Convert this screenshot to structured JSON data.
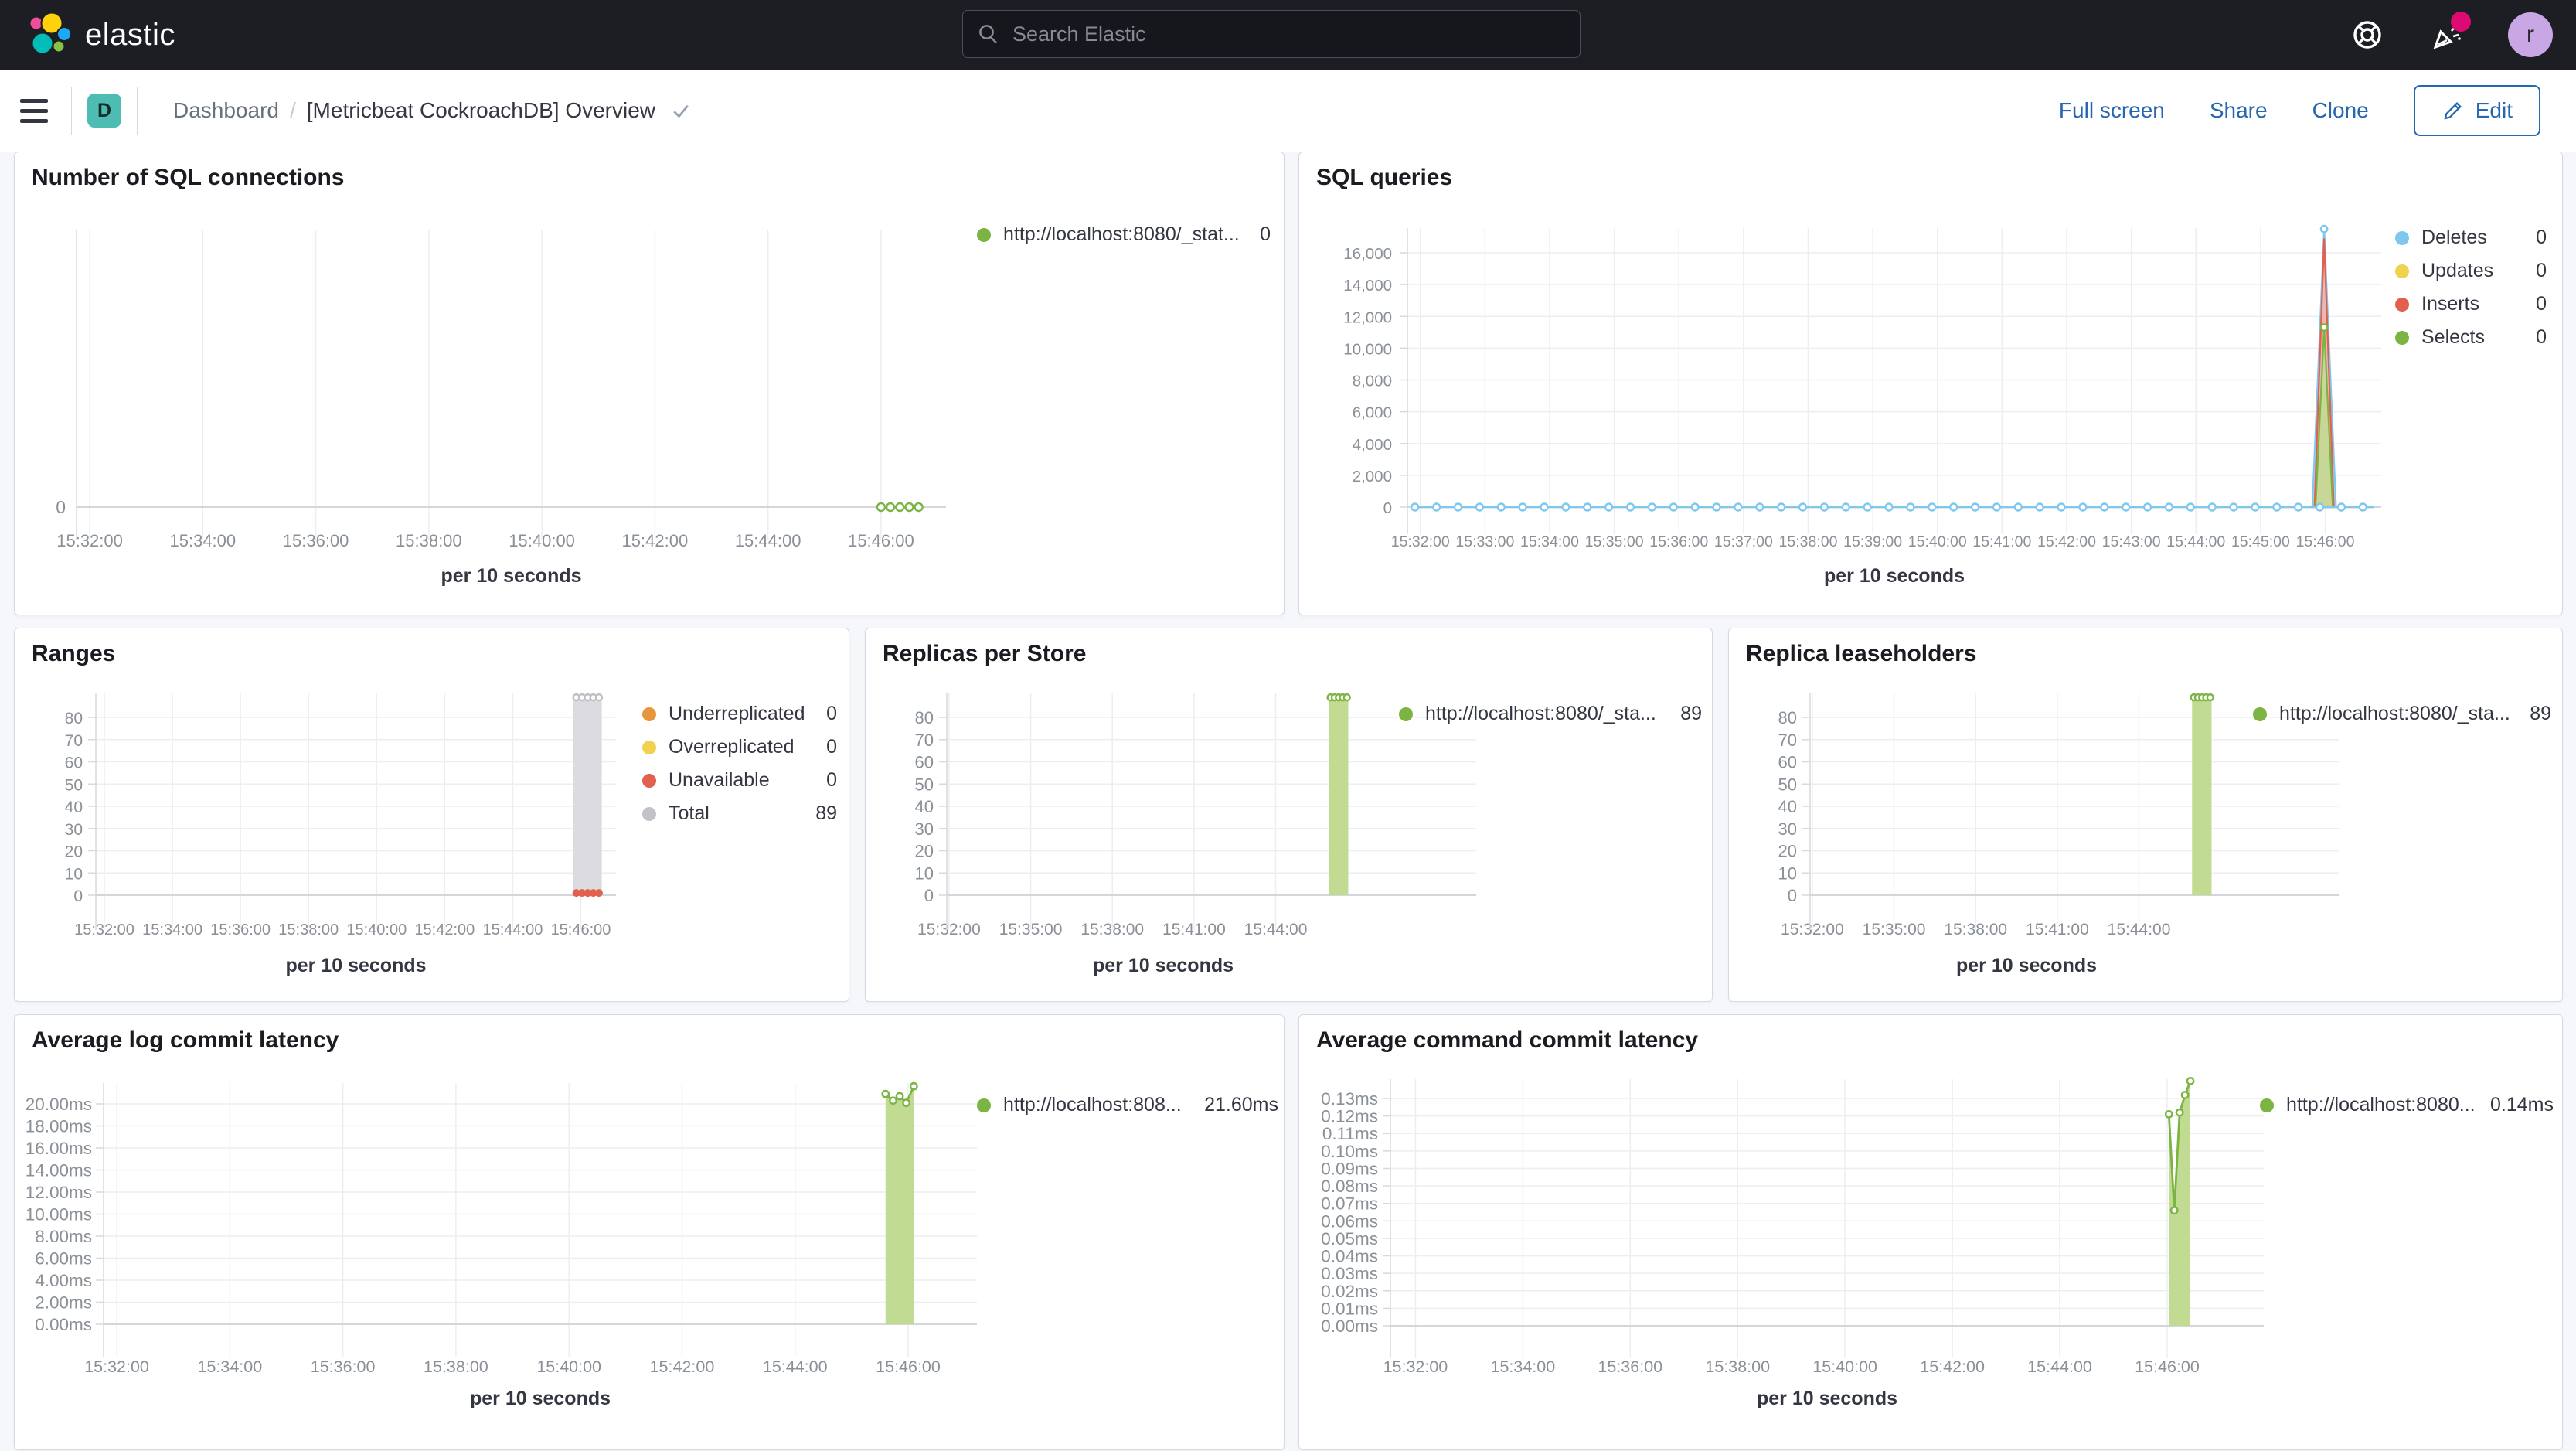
{
  "header": {
    "brand": "elastic",
    "search_placeholder": "Search Elastic",
    "avatar_initial": "r",
    "icons": [
      "help-icon",
      "newsfeed-icon",
      "avatar"
    ]
  },
  "toolbar": {
    "badge": "D",
    "breadcrumb_root": "Dashboard",
    "breadcrumb_separator": "/",
    "title": "[Metricbeat CockroachDB] Overview",
    "full_screen": "Full screen",
    "share": "Share",
    "clone": "Clone",
    "edit": "Edit"
  },
  "colors": {
    "green": "#7cb443",
    "green_fill": "#c1dc92",
    "blue": "#7ec8f0",
    "blue_fill": "#b5def5",
    "red": "#e2604e",
    "red_fill": "#f0b0a6",
    "yellow": "#f0d24e",
    "yellow_fill": "#f7e9a8",
    "gray": "#c2c2c8",
    "gray_fill": "#dcdce0",
    "orange": "#e9953c",
    "link_blue": "#2767b0",
    "badge_teal": "#4dbcb2",
    "notification_pink": "#dd0a73"
  },
  "chart_data": [
    {
      "title": "Number of SQL connections",
      "type": "line",
      "xlabel": "per 10 seconds",
      "ylim": [
        0,
        0
      ],
      "x_ticks": [
        {
          "t": 60,
          "label": "15:32:00"
        },
        {
          "t": 180,
          "label": "15:34:00"
        },
        {
          "t": 300,
          "label": "15:36:00"
        },
        {
          "t": 420,
          "label": "15:38:00"
        },
        {
          "t": 540,
          "label": "15:40:00"
        },
        {
          "t": 660,
          "label": "15:42:00"
        },
        {
          "t": 780,
          "label": "15:44:00"
        },
        {
          "t": 900,
          "label": "15:46:00"
        }
      ],
      "y_ticks": [
        {
          "v": 0,
          "label": "0"
        }
      ],
      "series": [
        {
          "name": "http://localhost:8080/_stat...",
          "color": "green",
          "style": "line",
          "points": [
            [
              900,
              0
            ],
            [
              910,
              0
            ],
            [
              920,
              0
            ],
            [
              930,
              0
            ],
            [
              940,
              0
            ]
          ]
        }
      ],
      "legend": [
        {
          "color": "green",
          "label": "http://localhost:8080/_stat...",
          "value": "0"
        }
      ]
    },
    {
      "title": "SQL queries",
      "type": "area",
      "xlabel": "per 10 seconds",
      "ylim": [
        0,
        16000
      ],
      "x_ticks": [
        {
          "t": 60,
          "label": "15:32:00"
        },
        {
          "t": 120,
          "label": "15:33:00"
        },
        {
          "t": 180,
          "label": "15:34:00"
        },
        {
          "t": 240,
          "label": "15:35:00"
        },
        {
          "t": 300,
          "label": "15:36:00"
        },
        {
          "t": 360,
          "label": "15:37:00"
        },
        {
          "t": 420,
          "label": "15:38:00"
        },
        {
          "t": 480,
          "label": "15:39:00"
        },
        {
          "t": 540,
          "label": "15:40:00"
        },
        {
          "t": 600,
          "label": "15:41:00"
        },
        {
          "t": 660,
          "label": "15:42:00"
        },
        {
          "t": 720,
          "label": "15:43:00"
        },
        {
          "t": 780,
          "label": "15:44:00"
        },
        {
          "t": 840,
          "label": "15:45:00"
        },
        {
          "t": 900,
          "label": "15:46:00"
        }
      ],
      "y_ticks": [
        {
          "v": 0,
          "label": "0"
        },
        {
          "v": 2000,
          "label": "2,000"
        },
        {
          "v": 4000,
          "label": "4,000"
        },
        {
          "v": 6000,
          "label": "6,000"
        },
        {
          "v": 8000,
          "label": "8,000"
        },
        {
          "v": 10000,
          "label": "10,000"
        },
        {
          "v": 12000,
          "label": "12,000"
        },
        {
          "v": 14000,
          "label": "14,000"
        },
        {
          "v": 16000,
          "label": "16,000"
        }
      ],
      "series": [
        {
          "name": "Updates",
          "color": "yellow",
          "style": "flatline",
          "points": [
            [
              55,
              0
            ],
            [
              945,
              0
            ]
          ],
          "step": 0
        },
        {
          "name": "Deletes",
          "color": "blue",
          "style": "spike",
          "points": [
            [
              888,
              0
            ],
            [
              899,
              17500
            ],
            [
              910,
              0
            ]
          ],
          "apex": true
        },
        {
          "name": "Inserts",
          "color": "red",
          "style": "spike",
          "points": [
            [
              890,
              0
            ],
            [
              899,
              16900
            ],
            [
              908,
              0
            ]
          ],
          "apex": false
        },
        {
          "name": "Selects",
          "color": "green",
          "style": "spike",
          "points": [
            [
              891,
              0
            ],
            [
              899,
              11300
            ],
            [
              907,
              0
            ]
          ],
          "apex": true
        },
        {
          "name": "Deletes",
          "color": "blue",
          "style": "flatline",
          "points": [
            [
              55,
              0
            ],
            [
              945,
              0
            ]
          ],
          "step": 20
        }
      ],
      "legend": [
        {
          "color": "blue",
          "label": "Deletes",
          "value": "0"
        },
        {
          "color": "yellow",
          "label": "Updates",
          "value": "0"
        },
        {
          "color": "red",
          "label": "Inserts",
          "value": "0"
        },
        {
          "color": "green",
          "label": "Selects",
          "value": "0"
        }
      ]
    },
    {
      "title": "Ranges",
      "type": "bar",
      "xlabel": "per 10 seconds",
      "ylim": [
        0,
        80
      ],
      "x_ticks": [
        {
          "t": 60,
          "label": "15:32:00"
        },
        {
          "t": 180,
          "label": "15:34:00"
        },
        {
          "t": 300,
          "label": "15:36:00"
        },
        {
          "t": 420,
          "label": "15:38:00"
        },
        {
          "t": 540,
          "label": "15:40:00"
        },
        {
          "t": 660,
          "label": "15:42:00"
        },
        {
          "t": 780,
          "label": "15:44:00"
        },
        {
          "t": 900,
          "label": "15:46:00"
        }
      ],
      "y_ticks": [
        {
          "v": 0,
          "label": "0"
        },
        {
          "v": 10,
          "label": "10"
        },
        {
          "v": 20,
          "label": "20"
        },
        {
          "v": 30,
          "label": "30"
        },
        {
          "v": 40,
          "label": "40"
        },
        {
          "v": 50,
          "label": "50"
        },
        {
          "v": 60,
          "label": "60"
        },
        {
          "v": 70,
          "label": "70"
        },
        {
          "v": 80,
          "label": "80"
        }
      ],
      "series": [
        {
          "name": "Total",
          "color": "gray",
          "style": "bar",
          "points": [
            [
              887,
              89
            ],
            [
              937,
              89
            ]
          ],
          "top_markers": {
            "from": 892,
            "to": 932,
            "step": 10,
            "v": 89
          }
        },
        {
          "name": "Unavailable",
          "color": "red",
          "style": "dots",
          "points": [
            [
              892,
              1
            ],
            [
              902,
              1
            ],
            [
              912,
              1
            ],
            [
              922,
              1
            ],
            [
              932,
              1
            ]
          ]
        }
      ],
      "legend": [
        {
          "color": "orange",
          "label": "Underreplicated",
          "value": "0"
        },
        {
          "color": "yellow",
          "label": "Overreplicated",
          "value": "0"
        },
        {
          "color": "red",
          "label": "Unavailable",
          "value": "0"
        },
        {
          "color": "gray",
          "label": "Total",
          "value": "89"
        }
      ]
    },
    {
      "title": "Replicas per Store",
      "type": "bar",
      "xlabel": "per 10 seconds",
      "ylim": [
        0,
        80
      ],
      "x_ticks": [
        {
          "t": 60,
          "label": "15:32:00"
        },
        {
          "t": 240,
          "label": "15:35:00"
        },
        {
          "t": 420,
          "label": "15:38:00"
        },
        {
          "t": 600,
          "label": "15:41:00"
        },
        {
          "t": 780,
          "label": "15:44:00"
        }
      ],
      "y_ticks": [
        {
          "v": 0,
          "label": "0"
        },
        {
          "v": 10,
          "label": "10"
        },
        {
          "v": 20,
          "label": "20"
        },
        {
          "v": 30,
          "label": "30"
        },
        {
          "v": 40,
          "label": "40"
        },
        {
          "v": 50,
          "label": "50"
        },
        {
          "v": 60,
          "label": "60"
        },
        {
          "v": 70,
          "label": "70"
        },
        {
          "v": 80,
          "label": "80"
        }
      ],
      "series": [
        {
          "name": "http://localhost:8080/_sta...",
          "color": "green",
          "style": "bar",
          "points": [
            [
              897,
              89
            ],
            [
              940,
              89
            ]
          ],
          "top_markers": {
            "from": 901,
            "to": 937,
            "step": 9,
            "v": 89
          }
        }
      ],
      "legend": [
        {
          "color": "green",
          "label": "http://localhost:8080/_sta...",
          "value": "89"
        }
      ]
    },
    {
      "title": "Replica leaseholders",
      "type": "bar",
      "xlabel": "per 10 seconds",
      "ylim": [
        0,
        80
      ],
      "x_ticks": [
        {
          "t": 60,
          "label": "15:32:00"
        },
        {
          "t": 240,
          "label": "15:35:00"
        },
        {
          "t": 420,
          "label": "15:38:00"
        },
        {
          "t": 600,
          "label": "15:41:00"
        },
        {
          "t": 780,
          "label": "15:44:00"
        }
      ],
      "y_ticks": [
        {
          "v": 0,
          "label": "0"
        },
        {
          "v": 10,
          "label": "10"
        },
        {
          "v": 20,
          "label": "20"
        },
        {
          "v": 30,
          "label": "30"
        },
        {
          "v": 40,
          "label": "40"
        },
        {
          "v": 50,
          "label": "50"
        },
        {
          "v": 60,
          "label": "60"
        },
        {
          "v": 70,
          "label": "70"
        },
        {
          "v": 80,
          "label": "80"
        }
      ],
      "series": [
        {
          "name": "http://localhost:8080/_sta...",
          "color": "green",
          "style": "bar",
          "points": [
            [
              897,
              89
            ],
            [
              940,
              89
            ]
          ],
          "top_markers": {
            "from": 901,
            "to": 937,
            "step": 9,
            "v": 89
          }
        }
      ],
      "legend": [
        {
          "color": "green",
          "label": "http://localhost:8080/_sta...",
          "value": "89"
        }
      ]
    },
    {
      "title": "Average log commit latency",
      "type": "area",
      "xlabel": "per 10 seconds",
      "ylim": [
        0,
        20
      ],
      "x_ticks": [
        {
          "t": 60,
          "label": "15:32:00"
        },
        {
          "t": 180,
          "label": "15:34:00"
        },
        {
          "t": 300,
          "label": "15:36:00"
        },
        {
          "t": 420,
          "label": "15:38:00"
        },
        {
          "t": 540,
          "label": "15:40:00"
        },
        {
          "t": 660,
          "label": "15:42:00"
        },
        {
          "t": 780,
          "label": "15:44:00"
        },
        {
          "t": 900,
          "label": "15:46:00"
        }
      ],
      "y_ticks": [
        {
          "v": 0,
          "label": "0.00ms"
        },
        {
          "v": 2,
          "label": "2.00ms"
        },
        {
          "v": 4,
          "label": "4.00ms"
        },
        {
          "v": 6,
          "label": "6.00ms"
        },
        {
          "v": 8,
          "label": "8.00ms"
        },
        {
          "v": 10,
          "label": "10.00ms"
        },
        {
          "v": 12,
          "label": "12.00ms"
        },
        {
          "v": 14,
          "label": "14.00ms"
        },
        {
          "v": 16,
          "label": "16.00ms"
        },
        {
          "v": 18,
          "label": "18.00ms"
        },
        {
          "v": 20,
          "label": "20.00ms"
        }
      ],
      "series": [
        {
          "name": "http://localhost:808...",
          "color": "green",
          "style": "areaLine",
          "points": [
            [
              876,
              20.9
            ],
            [
              884,
              20.3
            ],
            [
              891,
              20.7
            ],
            [
              898,
              20.1
            ],
            [
              906,
              21.6
            ]
          ]
        }
      ],
      "legend": [
        {
          "color": "green",
          "label": "http://localhost:808...",
          "value": "21.60ms"
        }
      ]
    },
    {
      "title": "Average command commit latency",
      "type": "area",
      "xlabel": "per 10 seconds",
      "ylim": [
        0,
        0.13
      ],
      "x_ticks": [
        {
          "t": 60,
          "label": "15:32:00"
        },
        {
          "t": 180,
          "label": "15:34:00"
        },
        {
          "t": 300,
          "label": "15:36:00"
        },
        {
          "t": 420,
          "label": "15:38:00"
        },
        {
          "t": 540,
          "label": "15:40:00"
        },
        {
          "t": 660,
          "label": "15:42:00"
        },
        {
          "t": 780,
          "label": "15:44:00"
        },
        {
          "t": 900,
          "label": "15:46:00"
        }
      ],
      "y_ticks": [
        {
          "v": 0,
          "label": "0.00ms"
        },
        {
          "v": 0.01,
          "label": "0.01ms"
        },
        {
          "v": 0.02,
          "label": "0.02ms"
        },
        {
          "v": 0.03,
          "label": "0.03ms"
        },
        {
          "v": 0.04,
          "label": "0.04ms"
        },
        {
          "v": 0.05,
          "label": "0.05ms"
        },
        {
          "v": 0.06,
          "label": "0.06ms"
        },
        {
          "v": 0.07,
          "label": "0.07ms"
        },
        {
          "v": 0.08,
          "label": "0.08ms"
        },
        {
          "v": 0.09,
          "label": "0.09ms"
        },
        {
          "v": 0.1,
          "label": "0.10ms"
        },
        {
          "v": 0.11,
          "label": "0.11ms"
        },
        {
          "v": 0.12,
          "label": "0.12ms"
        },
        {
          "v": 0.13,
          "label": "0.13ms"
        }
      ],
      "series": [
        {
          "name": "http://localhost:8080...",
          "color": "green",
          "style": "areaLine",
          "points": [
            [
              902,
              0.121
            ],
            [
              908,
              0.066
            ],
            [
              914,
              0.122
            ],
            [
              920,
              0.132
            ],
            [
              926,
              0.14
            ]
          ]
        }
      ],
      "legend": [
        {
          "color": "green",
          "label": "http://localhost:8080...",
          "value": "0.14ms"
        }
      ]
    }
  ]
}
